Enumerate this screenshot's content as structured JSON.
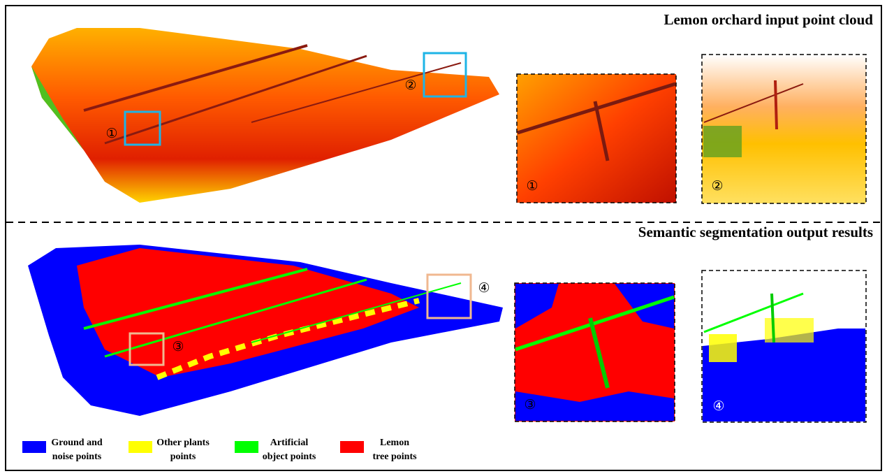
{
  "panels": [
    {
      "title": "Lemon orchard input point cloud"
    },
    {
      "title": "Semantic segmentation output results"
    }
  ],
  "markers": [
    "①",
    "②",
    "③",
    "④"
  ],
  "legend": [
    {
      "lines": [
        "Ground and",
        "noise points"
      ],
      "color": "#0000ff"
    },
    {
      "lines": [
        "Other plants",
        "points"
      ],
      "color": "#ffff00"
    },
    {
      "lines": [
        "Artificial",
        "object points"
      ],
      "color": "#00ff00"
    },
    {
      "lines": [
        "Lemon",
        "tree points"
      ],
      "color": "#ff0000"
    }
  ]
}
